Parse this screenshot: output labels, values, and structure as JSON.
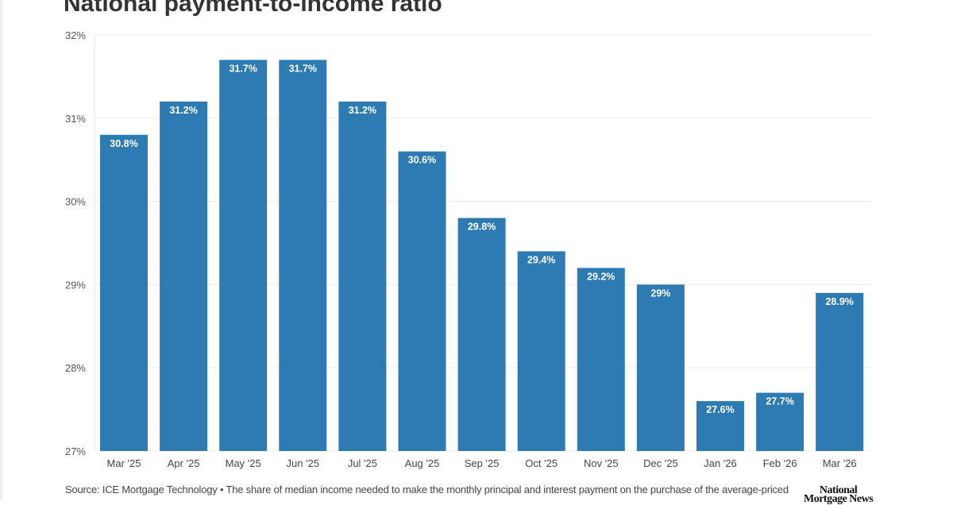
{
  "chart_data": {
    "type": "bar",
    "title": "National payment-to-income ratio",
    "categories": [
      "Mar '25",
      "Apr '25",
      "May '25",
      "Jun '25",
      "Jul '25",
      "Aug '25",
      "Sep '25",
      "Oct '25",
      "Nov '25",
      "Dec '25",
      "Jan '26",
      "Feb '26",
      "Mar '26"
    ],
    "values": [
      30.8,
      31.2,
      31.7,
      31.7,
      31.2,
      30.6,
      29.8,
      29.4,
      29.2,
      29.0,
      27.6,
      27.7,
      28.9
    ],
    "data_labels": [
      "30.8%",
      "31.2%",
      "31.7%",
      "31.7%",
      "31.2%",
      "30.6%",
      "29.8%",
      "29.4%",
      "29.2%",
      "29%",
      "27.6%",
      "27.7%",
      "28.9%"
    ],
    "ylim": [
      27,
      32
    ],
    "yticks": [
      27,
      28,
      29,
      30,
      31,
      32
    ],
    "ytick_labels": [
      "27%",
      "28%",
      "29%",
      "30%",
      "31%",
      "32%"
    ],
    "grid": true,
    "bar_color": "#2e7bb4",
    "xlabel": "",
    "ylabel": ""
  },
  "footer": {
    "source": "Source: ICE Mortgage Technology • The share of median income needed to make the monthly principal and interest payment on the purchase of the average-priced"
  },
  "logo": {
    "line1": "National",
    "line2": "Mortgage News"
  }
}
